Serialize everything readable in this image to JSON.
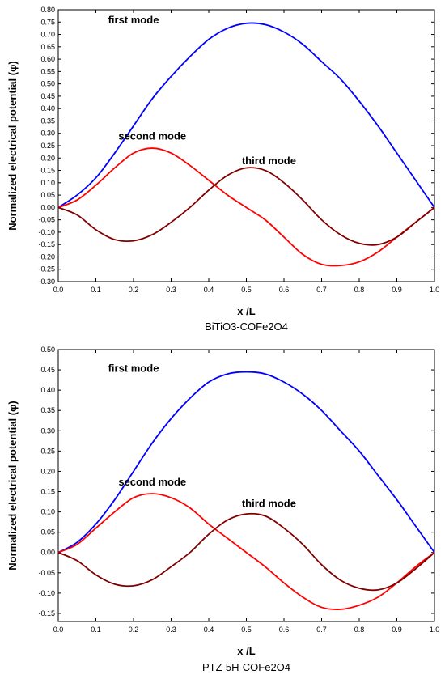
{
  "chart_data": [
    {
      "type": "line",
      "caption": "BiTiO3-COFe2O4",
      "xlabel": "x /L",
      "ylabel": "Normalized electrical potential (φ)",
      "xlim": [
        0,
        1.0
      ],
      "ylim": [
        -0.3,
        0.8
      ],
      "x_ticks": [
        "0.0",
        "0.1",
        "0.2",
        "0.3",
        "0.4",
        "0.5",
        "0.6",
        "0.7",
        "0.8",
        "0.9",
        "1.0"
      ],
      "y_ticks": [
        "0.80",
        "0.75",
        "0.70",
        "0.65",
        "0.60",
        "0.55",
        "0.50",
        "0.45",
        "0.40",
        "0.35",
        "0.30",
        "0.25",
        "0.20",
        "0.15",
        "0.10",
        "0.05",
        "0.00",
        "-0.05",
        "-0.10",
        "-0.15",
        "-0.20",
        "-0.25",
        "-0.30"
      ],
      "grid": false,
      "annotations": [
        {
          "text": "first mode",
          "x": 0.2,
          "y": 0.745
        },
        {
          "text": "second mode",
          "x": 0.25,
          "y": 0.275
        },
        {
          "text": "third mode",
          "x": 0.56,
          "y": 0.175
        }
      ],
      "series": [
        {
          "color": "#0000ff",
          "x": [
            0.0,
            0.05,
            0.1,
            0.15,
            0.2,
            0.25,
            0.3,
            0.35,
            0.4,
            0.45,
            0.5,
            0.55,
            0.6,
            0.65,
            0.7,
            0.75,
            0.8,
            0.85,
            0.9,
            0.95,
            1.0
          ],
          "values": [
            0.0,
            0.05,
            0.12,
            0.22,
            0.33,
            0.44,
            0.53,
            0.61,
            0.68,
            0.725,
            0.745,
            0.74,
            0.71,
            0.66,
            0.59,
            0.52,
            0.43,
            0.33,
            0.22,
            0.11,
            0.0
          ]
        },
        {
          "color": "#ff0000",
          "x": [
            0.0,
            0.05,
            0.1,
            0.15,
            0.2,
            0.25,
            0.3,
            0.35,
            0.4,
            0.45,
            0.5,
            0.55,
            0.6,
            0.65,
            0.7,
            0.75,
            0.8,
            0.85,
            0.9,
            0.95,
            1.0
          ],
          "values": [
            0.0,
            0.03,
            0.09,
            0.16,
            0.22,
            0.24,
            0.22,
            0.17,
            0.11,
            0.05,
            0.0,
            -0.05,
            -0.12,
            -0.19,
            -0.23,
            -0.235,
            -0.22,
            -0.18,
            -0.12,
            -0.06,
            0.0
          ]
        },
        {
          "color": "#800000",
          "x": [
            0.0,
            0.05,
            0.1,
            0.15,
            0.2,
            0.25,
            0.3,
            0.35,
            0.4,
            0.45,
            0.5,
            0.55,
            0.6,
            0.65,
            0.7,
            0.75,
            0.8,
            0.85,
            0.9,
            0.95,
            1.0
          ],
          "values": [
            0.0,
            -0.03,
            -0.09,
            -0.13,
            -0.135,
            -0.11,
            -0.06,
            0.0,
            0.07,
            0.13,
            0.16,
            0.15,
            0.1,
            0.03,
            -0.05,
            -0.11,
            -0.145,
            -0.15,
            -0.12,
            -0.06,
            0.0
          ]
        }
      ]
    },
    {
      "type": "line",
      "caption": "PTZ-5H-COFe2O4",
      "xlabel": "x /L",
      "ylabel": "Normalized electrical potential (φ)",
      "xlim": [
        0,
        1.0
      ],
      "ylim": [
        -0.17,
        0.5
      ],
      "x_ticks": [
        "0.0",
        "0.1",
        "0.2",
        "0.3",
        "0.4",
        "0.5",
        "0.6",
        "0.7",
        "0.8",
        "0.9",
        "1.0"
      ],
      "y_ticks": [
        "0.50",
        "0.45",
        "0.40",
        "0.35",
        "0.30",
        "0.25",
        "0.20",
        "0.15",
        "0.10",
        "0.05",
        "0.00",
        "-0.05",
        "-0.10",
        "-0.15"
      ],
      "grid": false,
      "annotations": [
        {
          "text": "first mode",
          "x": 0.2,
          "y": 0.445
        },
        {
          "text": "second mode",
          "x": 0.25,
          "y": 0.165
        },
        {
          "text": "third mode",
          "x": 0.56,
          "y": 0.112
        }
      ],
      "series": [
        {
          "color": "#0000ff",
          "x": [
            0.0,
            0.05,
            0.1,
            0.15,
            0.2,
            0.25,
            0.3,
            0.35,
            0.4,
            0.45,
            0.5,
            0.55,
            0.6,
            0.65,
            0.7,
            0.75,
            0.8,
            0.85,
            0.9,
            0.95,
            1.0
          ],
          "values": [
            0.0,
            0.025,
            0.07,
            0.13,
            0.2,
            0.27,
            0.33,
            0.38,
            0.42,
            0.44,
            0.445,
            0.44,
            0.42,
            0.39,
            0.35,
            0.3,
            0.25,
            0.19,
            0.13,
            0.065,
            0.0
          ]
        },
        {
          "color": "#ff0000",
          "x": [
            0.0,
            0.05,
            0.1,
            0.15,
            0.2,
            0.25,
            0.3,
            0.35,
            0.4,
            0.45,
            0.5,
            0.55,
            0.6,
            0.65,
            0.7,
            0.75,
            0.8,
            0.85,
            0.9,
            0.95,
            1.0
          ],
          "values": [
            0.0,
            0.02,
            0.06,
            0.1,
            0.135,
            0.145,
            0.135,
            0.11,
            0.07,
            0.035,
            0.0,
            -0.035,
            -0.075,
            -0.11,
            -0.135,
            -0.14,
            -0.13,
            -0.11,
            -0.075,
            -0.035,
            0.0
          ]
        },
        {
          "color": "#800000",
          "x": [
            0.0,
            0.05,
            0.1,
            0.15,
            0.2,
            0.25,
            0.3,
            0.35,
            0.4,
            0.45,
            0.5,
            0.55,
            0.6,
            0.65,
            0.7,
            0.75,
            0.8,
            0.85,
            0.9,
            0.95,
            1.0
          ],
          "values": [
            0.0,
            -0.02,
            -0.055,
            -0.078,
            -0.082,
            -0.067,
            -0.035,
            0.0,
            0.045,
            0.08,
            0.095,
            0.09,
            0.06,
            0.02,
            -0.03,
            -0.068,
            -0.088,
            -0.092,
            -0.075,
            -0.04,
            0.0
          ]
        }
      ]
    }
  ]
}
